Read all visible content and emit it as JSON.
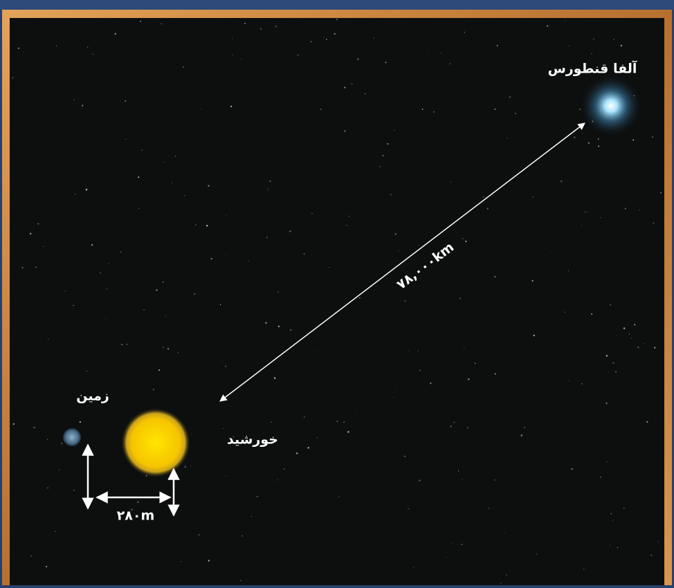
{
  "labels": {
    "alpha_centauri": "آلفا قنطورس",
    "earth": "زمین",
    "sun": "خورشید",
    "far_distance": "۷۸,۰۰۰km",
    "near_distance": "۲۸۰m"
  }
}
